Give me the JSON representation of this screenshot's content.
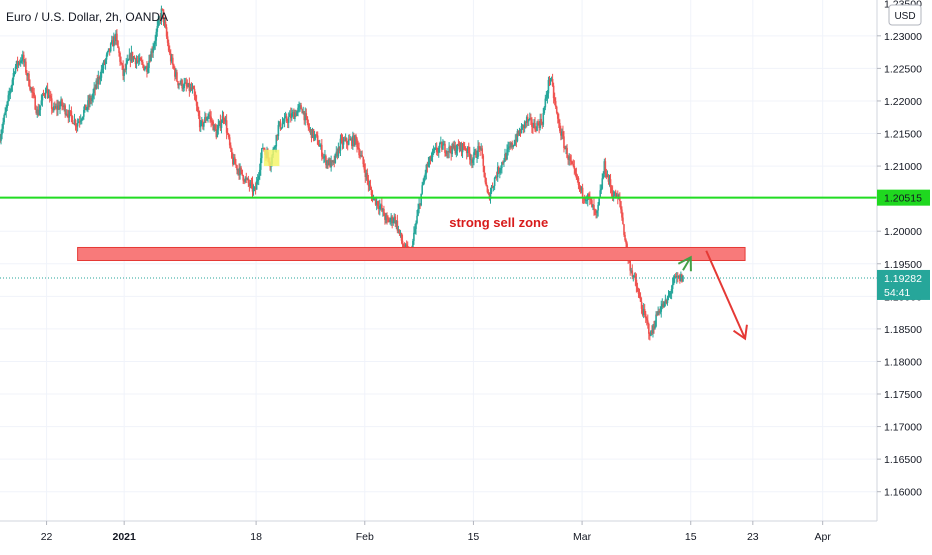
{
  "header": {
    "title": "Euro / U.S. Dollar, 2h, OANDA"
  },
  "currency_badge": "USD",
  "colors": {
    "up": "#26a69a",
    "down": "#ef5350",
    "grid": "#f0f3fa",
    "axis_text": "#131722",
    "support_line": "#22dd22",
    "zone_fill": "#f87a7a",
    "zone_stroke": "#e53935",
    "annotation_text": "#d81b1b",
    "green_arrow": "#43a047",
    "red_arrow": "#e53935",
    "highlight": "#f5f56a",
    "price_badge": "#26a69a"
  },
  "annotations": {
    "zone_label": "strong sell zone",
    "support_label": "1.20515",
    "price_label": "1.19282",
    "countdown_label": "54:41"
  },
  "chart_data": {
    "type": "candlestick",
    "title": "Euro / U.S. Dollar, 2h, OANDA",
    "y_axis": {
      "range": [
        1.1555,
        1.2355
      ],
      "ticks": [
        "1.23000",
        "1.22500",
        "1.22000",
        "1.21500",
        "1.21000",
        "1.20500",
        "1.20000",
        "1.19500",
        "1.19000",
        "1.18500",
        "1.18000",
        "1.17500",
        "1.17000",
        "1.16500",
        "1.16000"
      ],
      "top_partial_label": "1.23500"
    },
    "x_axis": {
      "ticks": [
        {
          "label": "22",
          "date": "2020-12-22"
        },
        {
          "label": "2021",
          "date": "2021-01-01"
        },
        {
          "label": "18",
          "date": "2021-01-18"
        },
        {
          "label": "Feb",
          "date": "2021-02-01"
        },
        {
          "label": "15",
          "date": "2021-02-15"
        },
        {
          "label": "Mar",
          "date": "2021-03-01"
        },
        {
          "label": "15",
          "date": "2021-03-15"
        },
        {
          "label": "23",
          "date": "2021-03-23"
        },
        {
          "label": "Apr",
          "date": "2021-04-01"
        }
      ],
      "range": [
        "2020-12-16",
        "2021-04-08"
      ]
    },
    "grid": true,
    "price_path": [
      [
        "2020-12-16",
        1.214
      ],
      [
        "2020-12-17",
        1.219
      ],
      [
        "2020-12-18",
        1.225
      ],
      [
        "2020-12-19",
        1.2268
      ],
      [
        "2020-12-21",
        1.218
      ],
      [
        "2020-12-22",
        1.222
      ],
      [
        "2020-12-23",
        1.2185
      ],
      [
        "2020-12-24",
        1.2195
      ],
      [
        "2020-12-26",
        1.2165
      ],
      [
        "2020-12-28",
        1.2205
      ],
      [
        "2020-12-29",
        1.224
      ],
      [
        "2020-12-30",
        1.227
      ],
      [
        "2020-12-31",
        1.23
      ],
      [
        "2021-01-01",
        1.224
      ],
      [
        "2021-01-02",
        1.227
      ],
      [
        "2021-01-04",
        1.225
      ],
      [
        "2021-01-05",
        1.229
      ],
      [
        "2021-01-06",
        1.234
      ],
      [
        "2021-01-07",
        1.227
      ],
      [
        "2021-01-08",
        1.223
      ],
      [
        "2021-01-10",
        1.2215
      ],
      [
        "2021-01-11",
        1.216
      ],
      [
        "2021-01-12",
        1.218
      ],
      [
        "2021-01-13",
        1.215
      ],
      [
        "2021-01-14",
        1.218
      ],
      [
        "2021-01-15",
        1.211
      ],
      [
        "2021-01-17",
        1.2075
      ],
      [
        "2021-01-18",
        1.206
      ],
      [
        "2021-01-19",
        1.213
      ],
      [
        "2021-01-20",
        1.2105
      ],
      [
        "2021-01-21",
        1.216
      ],
      [
        "2021-01-22",
        1.217
      ],
      [
        "2021-01-24",
        1.219
      ],
      [
        "2021-01-25",
        1.2155
      ],
      [
        "2021-01-26",
        1.214
      ],
      [
        "2021-01-27",
        1.211
      ],
      [
        "2021-01-28",
        1.21
      ],
      [
        "2021-01-29",
        1.2135
      ],
      [
        "2021-01-31",
        1.214
      ],
      [
        "2021-02-01",
        1.21
      ],
      [
        "2021-02-02",
        1.2055
      ],
      [
        "2021-02-03",
        1.204
      ],
      [
        "2021-02-04",
        1.2015
      ],
      [
        "2021-02-05",
        1.202
      ],
      [
        "2021-02-06",
        1.198
      ],
      [
        "2021-02-07",
        1.196
      ],
      [
        "2021-02-08",
        1.203
      ],
      [
        "2021-02-09",
        1.2095
      ],
      [
        "2021-02-10",
        1.212
      ],
      [
        "2021-02-11",
        1.213
      ],
      [
        "2021-02-12",
        1.2125
      ],
      [
        "2021-02-14",
        1.213
      ],
      [
        "2021-02-15",
        1.211
      ],
      [
        "2021-02-16",
        1.213
      ],
      [
        "2021-02-17",
        1.205
      ],
      [
        "2021-02-18",
        1.2085
      ],
      [
        "2021-02-19",
        1.211
      ],
      [
        "2021-02-21",
        1.215
      ],
      [
        "2021-02-22",
        1.217
      ],
      [
        "2021-02-23",
        1.216
      ],
      [
        "2021-02-24",
        1.217
      ],
      [
        "2021-02-25",
        1.224
      ],
      [
        "2021-02-26",
        1.217
      ],
      [
        "2021-02-27",
        1.2125
      ],
      [
        "2021-03-01",
        1.206
      ],
      [
        "2021-03-02",
        1.205
      ],
      [
        "2021-03-03",
        1.202
      ],
      [
        "2021-03-04",
        1.21
      ],
      [
        "2021-03-05",
        1.206
      ],
      [
        "2021-03-06",
        1.2045
      ],
      [
        "2021-03-07",
        1.196
      ],
      [
        "2021-03-08",
        1.192
      ],
      [
        "2021-03-09",
        1.1875
      ],
      [
        "2021-03-10",
        1.184
      ],
      [
        "2021-03-11",
        1.188
      ],
      [
        "2021-03-12",
        1.189
      ],
      [
        "2021-03-13",
        1.1925
      ],
      [
        "2021-03-14",
        1.1928
      ]
    ],
    "horizontal_lines": [
      {
        "value": 1.20515,
        "label": "1.20515"
      }
    ],
    "zones": [
      {
        "label": "strong sell zone",
        "from_date": "2020-12-26",
        "to_date": "2021-03-22",
        "y_low": 1.1955,
        "y_high": 1.1975
      }
    ],
    "highlight_box": {
      "from_date": "2021-01-19",
      "to_date": "2021-01-21",
      "y_low": 1.21,
      "y_high": 1.2125
    },
    "last_price": {
      "value": 1.19282,
      "label": "1.19282",
      "countdown": "54:41"
    },
    "projection_arrows": [
      {
        "color": "green",
        "from": [
          "2021-03-14",
          1.194
        ],
        "to": [
          "2021-03-15",
          1.196
        ]
      },
      {
        "color": "red",
        "from": [
          "2021-03-17",
          1.197
        ],
        "to": [
          "2021-03-22",
          1.1835
        ]
      }
    ]
  }
}
